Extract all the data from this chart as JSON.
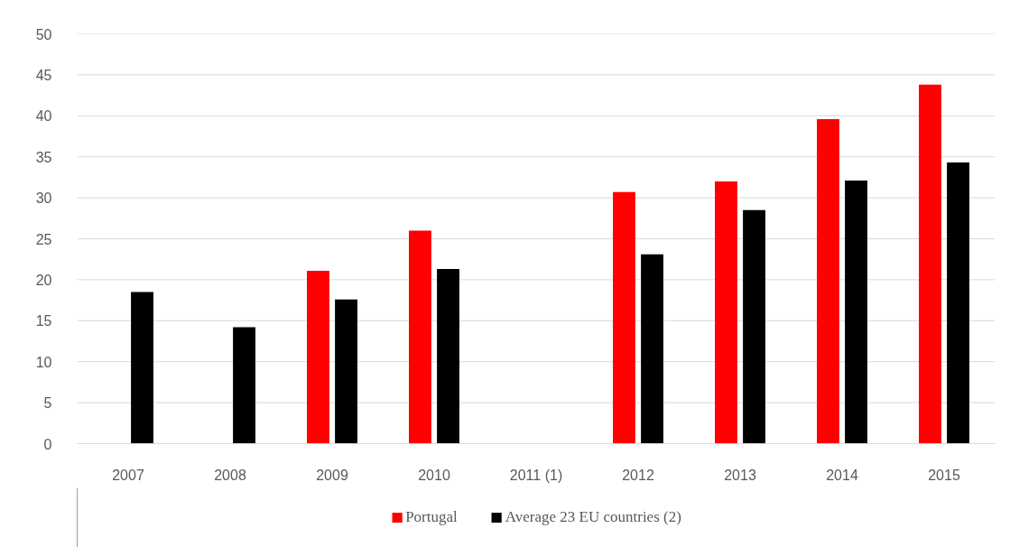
{
  "chart_data": {
    "type": "bar",
    "categories": [
      "2007",
      "2008",
      "2009",
      "2010",
      "2011 (1)",
      "2012",
      "2013",
      "2014",
      "2015"
    ],
    "series": [
      {
        "name": "Portugal",
        "color": "#ff0000",
        "values": [
          null,
          null,
          21.1,
          26.0,
          null,
          30.7,
          32.0,
          39.6,
          43.8
        ]
      },
      {
        "name": "Average 23 EU countries (2)",
        "color": "#000000",
        "values": [
          18.5,
          14.2,
          17.6,
          21.3,
          null,
          23.1,
          28.5,
          32.1,
          34.3
        ]
      }
    ],
    "ylim": [
      0,
      50
    ],
    "yticks": [
      0,
      5,
      10,
      15,
      20,
      25,
      30,
      35,
      40,
      45,
      50
    ],
    "grid": "y",
    "legend": "bottom"
  }
}
